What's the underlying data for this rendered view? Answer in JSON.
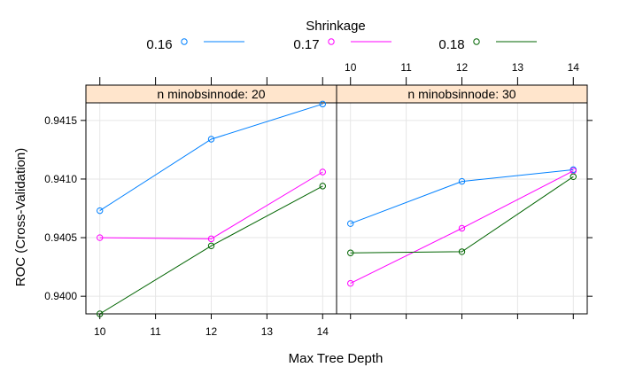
{
  "chart_data": {
    "type": "line",
    "legend": {
      "title": "Shrinkage",
      "placement": "top",
      "entries": [
        {
          "label": "0.16",
          "color": "#0080ff"
        },
        {
          "label": "0.17",
          "color": "#ff00ff"
        },
        {
          "label": "0.18",
          "color": "#006400"
        }
      ]
    },
    "xlabel": "Max Tree Depth",
    "ylabel": "ROC (Cross-Validation)",
    "xlim": [
      9.75,
      14.25
    ],
    "ylim": [
      0.93985,
      0.94165
    ],
    "xticks": [
      10,
      11,
      12,
      13,
      14
    ],
    "yticks": [
      0.94,
      0.9405,
      0.941,
      0.9415
    ],
    "ytick_labels": [
      "0.9400",
      "0.9405",
      "0.9410",
      "0.9415"
    ],
    "grid": true,
    "strip_color": "#ffe5cc",
    "panels": [
      {
        "strip": "n minobsinnode: 20",
        "x": [
          10,
          12,
          14
        ],
        "series": [
          {
            "name": "0.16",
            "color": "#0080ff",
            "values": [
              0.94073,
              0.94134,
              0.94164
            ]
          },
          {
            "name": "0.17",
            "color": "#ff00ff",
            "values": [
              0.9405,
              0.94049,
              0.94106
            ]
          },
          {
            "name": "0.18",
            "color": "#006400",
            "values": [
              0.93985,
              0.94043,
              0.94094
            ]
          }
        ]
      },
      {
        "strip": "n minobsinnode: 30",
        "x": [
          10,
          12,
          14
        ],
        "series": [
          {
            "name": "0.16",
            "color": "#0080ff",
            "values": [
              0.94062,
              0.94098,
              0.94108
            ]
          },
          {
            "name": "0.17",
            "color": "#ff00ff",
            "values": [
              0.94011,
              0.94058,
              0.94107
            ]
          },
          {
            "name": "0.18",
            "color": "#006400",
            "values": [
              0.94037,
              0.94038,
              0.94102
            ]
          }
        ]
      }
    ]
  }
}
